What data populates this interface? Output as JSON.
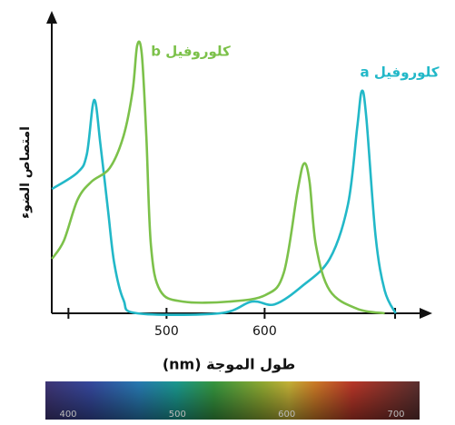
{
  "chart_data": {
    "type": "line",
    "ylabel": "امتصاص الضوء",
    "xlabel": "طول الموجة (nm)",
    "xlim": [
      383,
      770
    ],
    "ylim": [
      0,
      100
    ],
    "xticks": [
      {
        "value": 400,
        "label": null
      },
      500,
      600,
      {
        "value": 733,
        "label": null
      }
    ],
    "series": [
      {
        "name": "كلوروفيل a",
        "color": "#22b8c8",
        "x": [
          383.2,
          409.3,
          418.7,
          426.2,
          432.7,
          440.2,
          446.7,
          456.1,
          470.1,
          554.2,
          586.9,
          610.3,
          638.3,
          666.4,
          685.0,
          694.4,
          699.1,
          703.7,
          713.1,
          722.4,
          733.6
        ],
        "values": [
          41.5,
          47.0,
          53.0,
          71.2,
          56.1,
          34.8,
          16.7,
          4.5,
          0,
          0,
          3.9,
          3.0,
          9.1,
          18.2,
          36.4,
          62.1,
          74.2,
          65.2,
          25.8,
          7.6,
          0
        ]
      },
      {
        "name": "كلوروفيل b",
        "color": "#7cc14a",
        "x": [
          383.2,
          395.3,
          409.3,
          423.4,
          442.1,
          456.1,
          465.4,
          470.1,
          474.8,
          479.4,
          484.1,
          493.5,
          516.8,
          563.6,
          600.9,
          619.6,
          633.6,
          640.2,
          645.8,
          652.3,
          666.4,
          694.4,
          722.4
        ],
        "values": [
          18.2,
          24.2,
          37.9,
          43.9,
          48.5,
          59.1,
          74.2,
          89.4,
          86.4,
          59.1,
          22.7,
          7.6,
          3.9,
          3.9,
          6.1,
          13.6,
          40.9,
          50.0,
          43.9,
          22.7,
          7.6,
          1.5,
          0
        ]
      }
    ],
    "spectrum_labels": [
      400,
      500,
      600,
      700
    ]
  }
}
